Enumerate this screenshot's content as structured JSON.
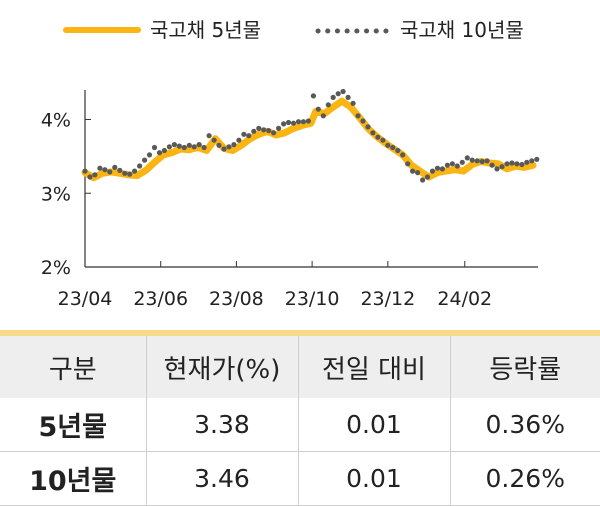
{
  "legend": {
    "series5": "국고채 5년물",
    "series10": "국고채 10년물"
  },
  "colors": {
    "series5": "#fbb512",
    "series10": "#595959",
    "axis": "#333333",
    "divider": "#f7d98a",
    "header_bg": "#eeeeee"
  },
  "chart_data": {
    "type": "line",
    "title": "",
    "xlabel": "",
    "ylabel": "",
    "ylim": [
      2,
      4.4
    ],
    "yticks": [
      2,
      3,
      4
    ],
    "ytick_labels": [
      "2%",
      "3%",
      "4%"
    ],
    "xticks": [
      "2023-04-01",
      "2023-06-01",
      "2023-08-01",
      "2023-10-01",
      "2023-12-01",
      "2024-02-01"
    ],
    "xtick_labels": [
      "23/04",
      "23/06",
      "23/08",
      "23/10",
      "23/12",
      "24/02"
    ],
    "xlim": [
      "2023-04-01",
      "2024-03-31"
    ],
    "grid": false,
    "legend_position": "top",
    "series": [
      {
        "name": "국고채 5년물",
        "style": "line",
        "points": [
          [
            "2023-04-01",
            3.28
          ],
          [
            "2023-04-08",
            3.21
          ],
          [
            "2023-04-15",
            3.27
          ],
          [
            "2023-04-22",
            3.29
          ],
          [
            "2023-04-29",
            3.27
          ],
          [
            "2023-05-06",
            3.25
          ],
          [
            "2023-05-13",
            3.24
          ],
          [
            "2023-05-20",
            3.31
          ],
          [
            "2023-05-27",
            3.42
          ],
          [
            "2023-06-03",
            3.52
          ],
          [
            "2023-06-10",
            3.55
          ],
          [
            "2023-06-17",
            3.6
          ],
          [
            "2023-06-24",
            3.59
          ],
          [
            "2023-07-01",
            3.62
          ],
          [
            "2023-07-08",
            3.58
          ],
          [
            "2023-07-15",
            3.74
          ],
          [
            "2023-07-22",
            3.61
          ],
          [
            "2023-07-29",
            3.58
          ],
          [
            "2023-08-05",
            3.65
          ],
          [
            "2023-08-12",
            3.74
          ],
          [
            "2023-08-19",
            3.8
          ],
          [
            "2023-08-26",
            3.84
          ],
          [
            "2023-09-02",
            3.79
          ],
          [
            "2023-09-09",
            3.82
          ],
          [
            "2023-09-16",
            3.88
          ],
          [
            "2023-09-23",
            3.92
          ],
          [
            "2023-09-30",
            3.95
          ],
          [
            "2023-10-04",
            4.11
          ],
          [
            "2023-10-11",
            4.08
          ],
          [
            "2023-10-18",
            4.17
          ],
          [
            "2023-10-25",
            4.25
          ],
          [
            "2023-11-01",
            4.17
          ],
          [
            "2023-11-08",
            4.03
          ],
          [
            "2023-11-15",
            3.88
          ],
          [
            "2023-11-22",
            3.77
          ],
          [
            "2023-11-29",
            3.68
          ],
          [
            "2023-12-06",
            3.6
          ],
          [
            "2023-12-13",
            3.52
          ],
          [
            "2023-12-20",
            3.38
          ],
          [
            "2023-12-27",
            3.3
          ],
          [
            "2024-01-03",
            3.22
          ],
          [
            "2024-01-10",
            3.28
          ],
          [
            "2024-01-17",
            3.3
          ],
          [
            "2024-01-24",
            3.32
          ],
          [
            "2024-01-31",
            3.3
          ],
          [
            "2024-02-07",
            3.39
          ],
          [
            "2024-02-14",
            3.43
          ],
          [
            "2024-02-21",
            3.41
          ],
          [
            "2024-02-28",
            3.4
          ],
          [
            "2024-03-06",
            3.33
          ],
          [
            "2024-03-13",
            3.37
          ],
          [
            "2024-03-20",
            3.35
          ],
          [
            "2024-03-27",
            3.38
          ]
        ]
      },
      {
        "name": "국고채 10년물",
        "style": "dotted",
        "points": [
          [
            "2023-04-01",
            3.3
          ],
          [
            "2023-04-05",
            3.22
          ],
          [
            "2023-04-09",
            3.25
          ],
          [
            "2023-04-13",
            3.34
          ],
          [
            "2023-04-17",
            3.32
          ],
          [
            "2023-04-21",
            3.29
          ],
          [
            "2023-04-25",
            3.35
          ],
          [
            "2023-04-29",
            3.31
          ],
          [
            "2023-05-03",
            3.27
          ],
          [
            "2023-05-07",
            3.26
          ],
          [
            "2023-05-11",
            3.3
          ],
          [
            "2023-05-15",
            3.37
          ],
          [
            "2023-05-19",
            3.45
          ],
          [
            "2023-05-23",
            3.52
          ],
          [
            "2023-05-27",
            3.62
          ],
          [
            "2023-05-31",
            3.55
          ],
          [
            "2023-06-04",
            3.58
          ],
          [
            "2023-06-08",
            3.63
          ],
          [
            "2023-06-12",
            3.66
          ],
          [
            "2023-06-16",
            3.64
          ],
          [
            "2023-06-20",
            3.62
          ],
          [
            "2023-06-24",
            3.65
          ],
          [
            "2023-06-28",
            3.63
          ],
          [
            "2023-07-02",
            3.66
          ],
          [
            "2023-07-06",
            3.62
          ],
          [
            "2023-07-10",
            3.78
          ],
          [
            "2023-07-14",
            3.72
          ],
          [
            "2023-07-18",
            3.65
          ],
          [
            "2023-07-22",
            3.6
          ],
          [
            "2023-07-26",
            3.63
          ],
          [
            "2023-07-30",
            3.66
          ],
          [
            "2023-08-03",
            3.72
          ],
          [
            "2023-08-07",
            3.8
          ],
          [
            "2023-08-11",
            3.78
          ],
          [
            "2023-08-15",
            3.84
          ],
          [
            "2023-08-19",
            3.88
          ],
          [
            "2023-08-23",
            3.86
          ],
          [
            "2023-08-27",
            3.85
          ],
          [
            "2023-08-31",
            3.82
          ],
          [
            "2023-09-04",
            3.88
          ],
          [
            "2023-09-08",
            3.94
          ],
          [
            "2023-09-12",
            3.96
          ],
          [
            "2023-09-16",
            3.95
          ],
          [
            "2023-09-20",
            3.97
          ],
          [
            "2023-09-24",
            3.97
          ],
          [
            "2023-09-28",
            3.98
          ],
          [
            "2023-10-02",
            4.32
          ],
          [
            "2023-10-06",
            4.14
          ],
          [
            "2023-10-10",
            4.05
          ],
          [
            "2023-10-14",
            4.2
          ],
          [
            "2023-10-18",
            4.3
          ],
          [
            "2023-10-22",
            4.35
          ],
          [
            "2023-10-26",
            4.38
          ],
          [
            "2023-10-30",
            4.3
          ],
          [
            "2023-11-03",
            4.22
          ],
          [
            "2023-11-07",
            4.05
          ],
          [
            "2023-11-11",
            3.98
          ],
          [
            "2023-11-15",
            3.9
          ],
          [
            "2023-11-19",
            3.82
          ],
          [
            "2023-11-23",
            3.76
          ],
          [
            "2023-11-27",
            3.72
          ],
          [
            "2023-12-01",
            3.65
          ],
          [
            "2023-12-05",
            3.62
          ],
          [
            "2023-12-09",
            3.58
          ],
          [
            "2023-12-13",
            3.52
          ],
          [
            "2023-12-17",
            3.4
          ],
          [
            "2023-12-21",
            3.3
          ],
          [
            "2023-12-25",
            3.28
          ],
          [
            "2023-12-29",
            3.18
          ],
          [
            "2024-01-02",
            3.22
          ],
          [
            "2024-01-06",
            3.3
          ],
          [
            "2024-01-10",
            3.34
          ],
          [
            "2024-01-14",
            3.33
          ],
          [
            "2024-01-18",
            3.38
          ],
          [
            "2024-01-22",
            3.4
          ],
          [
            "2024-01-26",
            3.37
          ],
          [
            "2024-01-30",
            3.42
          ],
          [
            "2024-02-03",
            3.48
          ],
          [
            "2024-02-07",
            3.45
          ],
          [
            "2024-02-11",
            3.44
          ],
          [
            "2024-02-15",
            3.43
          ],
          [
            "2024-02-19",
            3.44
          ],
          [
            "2024-02-23",
            3.38
          ],
          [
            "2024-02-27",
            3.33
          ],
          [
            "2024-03-02",
            3.36
          ],
          [
            "2024-03-06",
            3.4
          ],
          [
            "2024-03-10",
            3.41
          ],
          [
            "2024-03-14",
            3.4
          ],
          [
            "2024-03-18",
            3.39
          ],
          [
            "2024-03-22",
            3.42
          ],
          [
            "2024-03-26",
            3.44
          ],
          [
            "2024-03-30",
            3.46
          ]
        ]
      }
    ]
  },
  "table": {
    "headers": [
      "구분",
      "현재가(%)",
      "전일 대비",
      "등락률"
    ],
    "rows": [
      {
        "label": "5년물",
        "current": "3.38",
        "change": "0.01",
        "rate": "0.36%"
      },
      {
        "label": "10년물",
        "current": "3.46",
        "change": "0.01",
        "rate": "0.26%"
      }
    ]
  }
}
